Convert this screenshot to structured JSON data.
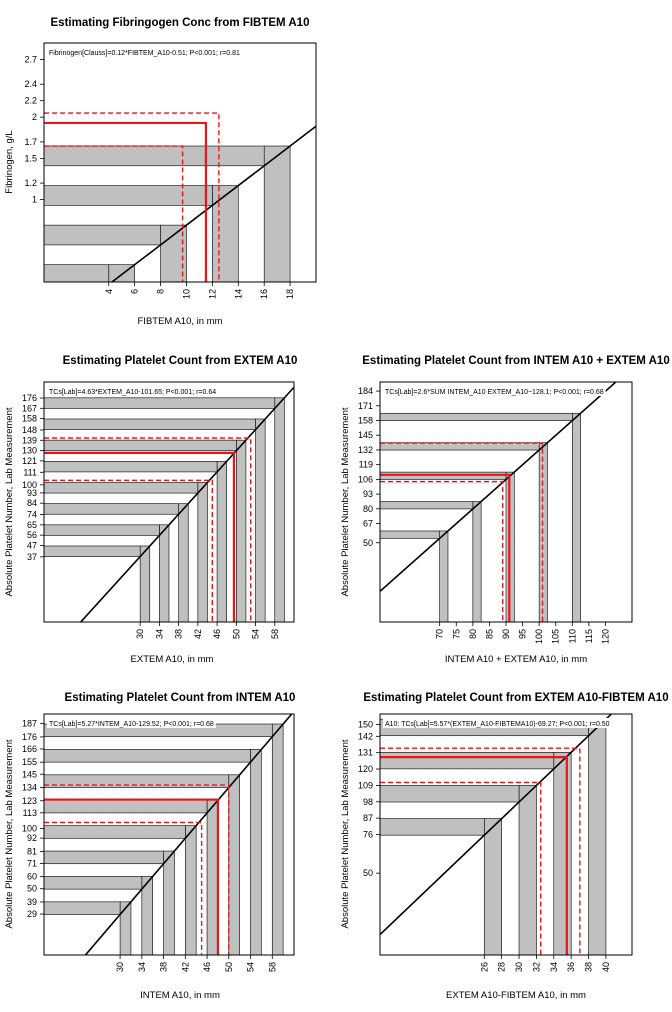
{
  "chart_data": [
    {
      "type": "line",
      "title": "Estimating Fibringogen Conc from FIBTEM A10",
      "equation": "Fibrinogen[Clauss]=0.12*FIBTEM_A10-0.51; P<0.001; r=0.81",
      "xlabel": "FIBTEM A10, in mm",
      "ylabel": "Fibrinogen, g/L",
      "xlim": [
        -1,
        20
      ],
      "ylim": [
        0,
        2.9
      ],
      "x_ticks": [
        4,
        6,
        8,
        10,
        12,
        14,
        16,
        18
      ],
      "y_ticks": [
        1,
        1.2,
        1.5,
        1.7,
        2,
        2.2,
        2.4,
        2.7
      ],
      "regression": {
        "slope": 0.12,
        "intercept": -0.51
      },
      "bands": [
        [
          4,
          6
        ],
        [
          8,
          10
        ],
        [
          12,
          14
        ],
        [
          16,
          18
        ]
      ],
      "estimate": {
        "x": 11.5,
        "y": 1.93
      },
      "ci": {
        "x": [
          9.7,
          12.5
        ],
        "y": [
          1.65,
          2.05
        ]
      }
    },
    {
      "type": "line",
      "title": "Estimating Platelet Count from EXTEM A10",
      "equation": "TCs[Lab]=4.63*EXTEM_A10-101.65; P<0.001; r=0.64",
      "xlabel": "EXTEM A10, in mm",
      "ylabel": "Absolute Platelet Number, Lab Measurement",
      "xlim": [
        10,
        62
      ],
      "ylim": [
        -20,
        190
      ],
      "x_ticks": [
        30,
        34,
        38,
        42,
        46,
        50,
        54,
        58
      ],
      "y_ticks": [
        37,
        47,
        56,
        65,
        74,
        84,
        93,
        100,
        111,
        121,
        130,
        139,
        148,
        158,
        167,
        176
      ],
      "regression": {
        "slope": 4.63,
        "intercept": -101.65
      },
      "bands": [
        [
          30,
          32
        ],
        [
          34,
          36
        ],
        [
          38,
          40
        ],
        [
          42,
          44
        ],
        [
          46,
          48
        ],
        [
          50,
          52
        ],
        [
          54,
          56
        ],
        [
          58,
          60
        ]
      ],
      "estimate": {
        "x": 49.5,
        "y": 128
      },
      "ci": {
        "x": [
          45,
          53
        ],
        "y": [
          104,
          141
        ]
      }
    },
    {
      "type": "line",
      "title": "Estimating Platelet Count from INTEM A10 + EXTEM A10",
      "equation": "TCs[Lab]=2.6*SUM INTEM_A10 EXTEM_A10−128.1; P<0.001; r=0.68",
      "xlabel": "INTEM A10 + EXTEM A10, in mm",
      "ylabel": "Absolute Platelet Number, Lab Measurement",
      "xlim": [
        52,
        128
      ],
      "ylim": [
        -20,
        192
      ],
      "x_ticks": [
        70,
        75,
        80,
        85,
        90,
        95,
        100,
        105,
        110,
        115,
        120
      ],
      "y_ticks": [
        50,
        67,
        80,
        93,
        106,
        119,
        132,
        145,
        158,
        171,
        184
      ],
      "regression": {
        "slope": 2.6,
        "intercept": -128.1
      },
      "bands": [
        [
          70,
          72.5
        ],
        [
          80,
          82.5
        ],
        [
          90,
          92.5
        ],
        [
          100,
          102.5
        ],
        [
          110,
          112.5
        ]
      ],
      "estimate": {
        "x": 91,
        "y": 110
      },
      "ci": {
        "x": [
          89,
          101
        ],
        "y": [
          104,
          138
        ]
      }
    },
    {
      "type": "line",
      "title": "Estimating Platelet Count from INTEM A10",
      "equation": "TCs[Lab]=5.27*INTEM_A10-129.52; P<0.001; r=0.68",
      "xlabel": "INTEM A10, in mm",
      "ylabel": "Absolute Platelet Number, Lab Measurement",
      "xlim": [
        16,
        62
      ],
      "ylim": [
        -5,
        195
      ],
      "x_ticks": [
        30,
        34,
        38,
        42,
        46,
        50,
        54,
        58
      ],
      "y_ticks": [
        29,
        39,
        50,
        60,
        71,
        81,
        92,
        100,
        113,
        123,
        134,
        145,
        155,
        166,
        176,
        187
      ],
      "regression": {
        "slope": 5.27,
        "intercept": -129.52
      },
      "bands": [
        [
          30,
          32
        ],
        [
          34,
          36
        ],
        [
          38,
          40
        ],
        [
          42,
          44
        ],
        [
          46,
          48
        ],
        [
          50,
          52
        ],
        [
          54,
          56
        ],
        [
          58,
          60
        ]
      ],
      "estimate": {
        "x": 48,
        "y": 124
      },
      "ci": {
        "x": [
          45,
          50
        ],
        "y": [
          105,
          136
        ]
      }
    },
    {
      "type": "line",
      "title": "Estimating Platelet Count from EXTEM A10-FIBTEM A10",
      "equation": "A10: TCs[Lab]=5.57*(EXTEM_A10-FIBTEMA10)-69.27; P<0.001; r=0.50",
      "xlabel": "EXTEM A10-FIBTEM A10, in mm",
      "ylabel": "Absolute Platelet Number, Lab Measurement",
      "xlim": [
        14,
        43
      ],
      "ylim": [
        -5,
        157
      ],
      "x_ticks": [
        26,
        28,
        30,
        32,
        34,
        36,
        38,
        40
      ],
      "y_ticks": [
        50,
        76,
        87,
        98,
        109,
        120,
        131,
        142,
        150
      ],
      "regression": {
        "slope": 5.57,
        "intercept": -69.27
      },
      "bands": [
        [
          26,
          28
        ],
        [
          30,
          32
        ],
        [
          34,
          36
        ],
        [
          38,
          40
        ]
      ],
      "estimate": {
        "x": 35.5,
        "y": 128
      },
      "ci": {
        "x": [
          32.5,
          37
        ],
        "y": [
          111,
          134
        ]
      }
    }
  ],
  "colors": {
    "band": "#c0c0c0",
    "line": "#000000",
    "estimate": "#e8161b"
  }
}
